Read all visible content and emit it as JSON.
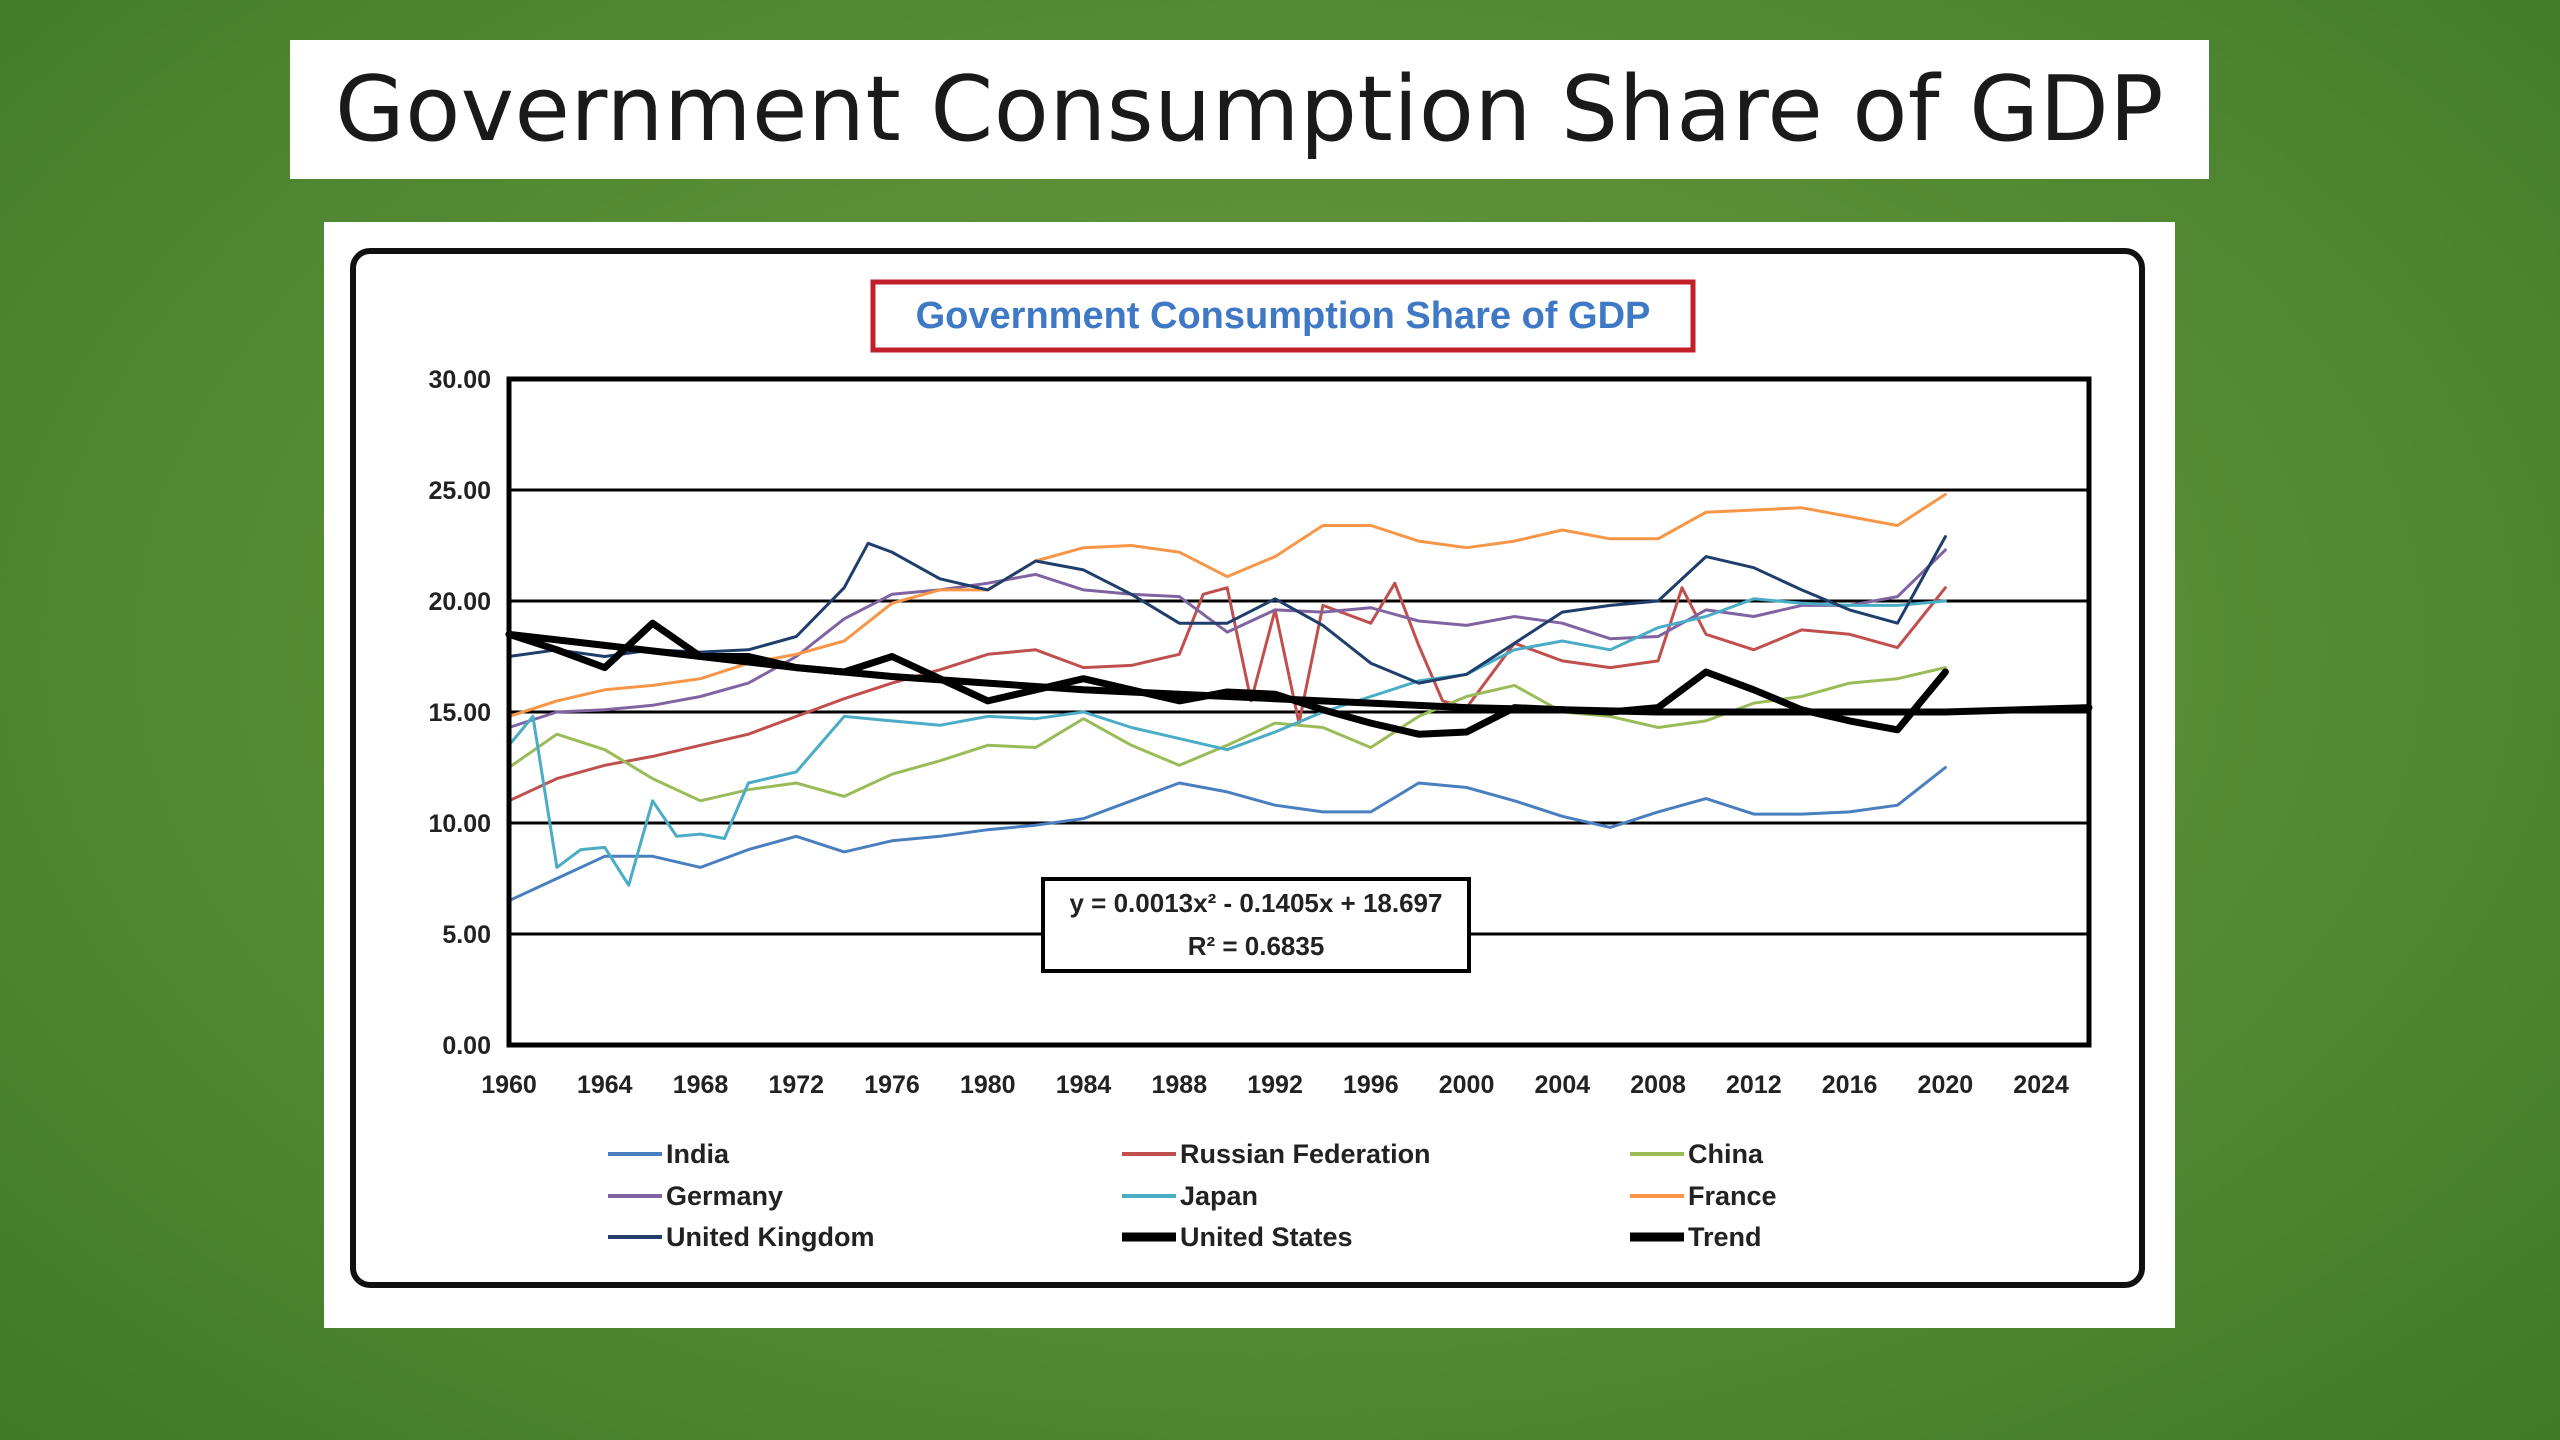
{
  "slide": {
    "title": "Government Consumption Share of GDP"
  },
  "colors": {
    "background": "#5a8e37",
    "title_box_border": "#c0202a",
    "title_text": "#3f78c4"
  },
  "chart_data": {
    "type": "line",
    "title": "Government Consumption Share of GDP",
    "xlabel": "",
    "ylabel": "",
    "xlim": [
      1960,
      2026
    ],
    "ylim": [
      0,
      30
    ],
    "x_ticks": [
      1960,
      1964,
      1968,
      1972,
      1976,
      1980,
      1984,
      1988,
      1992,
      1996,
      2000,
      2004,
      2008,
      2012,
      2016,
      2020,
      2024
    ],
    "x_tick_labels": [
      "1960",
      "1964",
      "1968",
      "1972",
      "1976",
      "1980",
      "1984",
      "1988",
      "1992",
      "1996",
      "2000",
      "2004",
      "2008",
      "2012",
      "2016",
      "2020",
      "2024"
    ],
    "y_ticks": [
      0,
      5,
      10,
      15,
      20,
      25,
      30
    ],
    "y_tick_labels": [
      "0.00",
      "5.00",
      "10.00",
      "15.00",
      "20.00",
      "25.00",
      "30.00"
    ],
    "grid": "horizontal",
    "legend_position": "bottom",
    "annotation": {
      "equation": "y = 0.0013x² - 0.1405x + 18.697",
      "r_squared": "R² = 0.6835"
    },
    "series": [
      {
        "name": "India",
        "color": "#4a7fbf",
        "width": 3,
        "x": [
          1960,
          1962,
          1964,
          1966,
          1968,
          1970,
          1972,
          1974,
          1976,
          1978,
          1980,
          1982,
          1984,
          1986,
          1988,
          1990,
          1992,
          1994,
          1996,
          1998,
          2000,
          2002,
          2004,
          2006,
          2008,
          2010,
          2012,
          2014,
          2016,
          2018,
          2020
        ],
        "y": [
          6.5,
          7.5,
          8.5,
          8.5,
          8.0,
          8.8,
          9.4,
          8.7,
          9.2,
          9.4,
          9.7,
          9.9,
          10.2,
          11.0,
          11.8,
          11.4,
          10.8,
          10.5,
          10.5,
          11.8,
          11.6,
          11.0,
          10.3,
          9.8,
          10.5,
          11.1,
          10.4,
          10.4,
          10.5,
          10.8,
          12.5
        ]
      },
      {
        "name": "Russian Federation",
        "color": "#c0504d",
        "width": 3,
        "x": [
          1960,
          1962,
          1964,
          1966,
          1968,
          1970,
          1972,
          1974,
          1976,
          1978,
          1980,
          1982,
          1984,
          1986,
          1988,
          1989,
          1990,
          1991,
          1992,
          1993,
          1994,
          1996,
          1997,
          1998,
          1999,
          2000,
          2002,
          2004,
          2006,
          2008,
          2009,
          2010,
          2012,
          2014,
          2016,
          2018,
          2020
        ],
        "y": [
          11.0,
          12.0,
          12.6,
          13.0,
          13.5,
          14.0,
          14.8,
          15.6,
          16.3,
          16.9,
          17.6,
          17.8,
          17.0,
          17.1,
          17.6,
          20.3,
          20.6,
          15.5,
          19.6,
          14.5,
          19.8,
          19.0,
          20.8,
          18.0,
          15.5,
          15.2,
          18.1,
          17.3,
          17.0,
          17.3,
          20.6,
          18.5,
          17.8,
          18.7,
          18.5,
          17.9,
          20.6
        ]
      },
      {
        "name": "China",
        "color": "#9bbb59",
        "width": 3,
        "x": [
          1960,
          1962,
          1964,
          1966,
          1968,
          1970,
          1972,
          1974,
          1976,
          1978,
          1980,
          1982,
          1984,
          1986,
          1988,
          1990,
          1992,
          1994,
          1996,
          1998,
          2000,
          2002,
          2004,
          2006,
          2008,
          2010,
          2012,
          2014,
          2016,
          2018,
          2020
        ],
        "y": [
          12.5,
          14.0,
          13.3,
          12.0,
          11.0,
          11.5,
          11.8,
          11.2,
          12.2,
          12.8,
          13.5,
          13.4,
          14.7,
          13.5,
          12.6,
          13.5,
          14.5,
          14.3,
          13.4,
          14.8,
          15.7,
          16.2,
          15.0,
          14.8,
          14.3,
          14.6,
          15.4,
          15.7,
          16.3,
          16.5,
          17.0
        ]
      },
      {
        "name": "Germany",
        "color": "#8064a2",
        "width": 3,
        "x": [
          1960,
          1962,
          1964,
          1966,
          1968,
          1970,
          1972,
          1974,
          1976,
          1978,
          1980,
          1982,
          1984,
          1986,
          1988,
          1990,
          1992,
          1994,
          1996,
          1998,
          2000,
          2002,
          2004,
          2006,
          2008,
          2010,
          2012,
          2014,
          2016,
          2018,
          2020
        ],
        "y": [
          14.3,
          15.0,
          15.1,
          15.3,
          15.7,
          16.3,
          17.5,
          19.2,
          20.3,
          20.5,
          20.8,
          21.2,
          20.5,
          20.3,
          20.2,
          18.6,
          19.6,
          19.5,
          19.7,
          19.1,
          18.9,
          19.3,
          19.0,
          18.3,
          18.4,
          19.6,
          19.3,
          19.8,
          19.8,
          20.2,
          22.3
        ]
      },
      {
        "name": "Japan",
        "color": "#4bacc6",
        "width": 3,
        "x": [
          1960,
          1961,
          1962,
          1963,
          1964,
          1965,
          1966,
          1967,
          1968,
          1969,
          1970,
          1972,
          1974,
          1976,
          1978,
          1980,
          1982,
          1984,
          1986,
          1988,
          1990,
          1992,
          1994,
          1996,
          1998,
          2000,
          2002,
          2004,
          2006,
          2008,
          2010,
          2012,
          2014,
          2016,
          2018,
          2020
        ],
        "y": [
          13.5,
          14.8,
          8.0,
          8.8,
          8.9,
          7.2,
          11.0,
          9.4,
          9.5,
          9.3,
          11.8,
          12.3,
          14.8,
          14.6,
          14.4,
          14.8,
          14.7,
          15.0,
          14.3,
          13.8,
          13.3,
          14.1,
          15.0,
          15.7,
          16.4,
          16.7,
          17.8,
          18.2,
          17.8,
          18.8,
          19.3,
          20.1,
          19.9,
          19.8,
          19.8,
          20.0
        ]
      },
      {
        "name": "France",
        "color": "#f79646",
        "width": 3,
        "x": [
          1960,
          1962,
          1964,
          1966,
          1968,
          1970,
          1972,
          1974,
          1976,
          1978,
          1980,
          1982,
          1984,
          1986,
          1988,
          1990,
          1992,
          1994,
          1996,
          1998,
          2000,
          2002,
          2004,
          2006,
          2008,
          2010,
          2012,
          2014,
          2016,
          2018,
          2020
        ],
        "y": [
          14.8,
          15.5,
          16.0,
          16.2,
          16.5,
          17.2,
          17.6,
          18.2,
          19.9,
          20.5,
          20.5,
          21.8,
          22.4,
          22.5,
          22.2,
          21.1,
          22.0,
          23.4,
          23.4,
          22.7,
          22.4,
          22.7,
          23.2,
          22.8,
          22.8,
          24.0,
          24.1,
          24.2,
          23.8,
          23.4,
          24.8
        ]
      },
      {
        "name": "United Kingdom",
        "color": "#1f3e6b",
        "width": 3,
        "x": [
          1960,
          1962,
          1964,
          1966,
          1968,
          1970,
          1972,
          1974,
          1975,
          1976,
          1978,
          1980,
          1982,
          1984,
          1986,
          1988,
          1990,
          1992,
          1994,
          1996,
          1998,
          2000,
          2002,
          2004,
          2006,
          2008,
          2010,
          2012,
          2014,
          2016,
          2018,
          2020
        ],
        "y": [
          17.5,
          17.8,
          17.5,
          17.8,
          17.7,
          17.8,
          18.4,
          20.6,
          22.6,
          22.2,
          21.0,
          20.5,
          21.8,
          21.4,
          20.3,
          19.0,
          19.0,
          20.1,
          18.9,
          17.2,
          16.3,
          16.7,
          18.1,
          19.5,
          19.8,
          20.0,
          22.0,
          21.5,
          20.5,
          19.6,
          19.0,
          22.9
        ]
      },
      {
        "name": "United States",
        "color": "#000000",
        "width": 7,
        "x": [
          1960,
          1962,
          1964,
          1966,
          1968,
          1970,
          1972,
          1974,
          1976,
          1978,
          1980,
          1982,
          1984,
          1986,
          1988,
          1990,
          1992,
          1994,
          1996,
          1998,
          2000,
          2002,
          2004,
          2006,
          2008,
          2010,
          2012,
          2014,
          2016,
          2018,
          2020
        ],
        "y": [
          18.5,
          17.8,
          17.0,
          19.0,
          17.5,
          17.5,
          17.0,
          16.8,
          17.5,
          16.5,
          15.5,
          16.0,
          16.5,
          16.0,
          15.5,
          15.9,
          15.8,
          15.1,
          14.5,
          14.0,
          14.1,
          15.2,
          15.1,
          15.0,
          15.2,
          16.8,
          16.0,
          15.1,
          14.6,
          14.2,
          16.8
        ]
      },
      {
        "name": "Trend",
        "color": "#000000",
        "width": 7,
        "x": [
          1960,
          1964,
          1968,
          1972,
          1976,
          1980,
          1984,
          1988,
          1992,
          1996,
          2000,
          2004,
          2008,
          2012,
          2016,
          2020,
          2026
        ],
        "y": [
          18.5,
          18.0,
          17.5,
          17.0,
          16.6,
          16.3,
          16.0,
          15.8,
          15.6,
          15.4,
          15.2,
          15.1,
          15.0,
          15.0,
          15.0,
          15.0,
          15.2
        ]
      }
    ]
  }
}
